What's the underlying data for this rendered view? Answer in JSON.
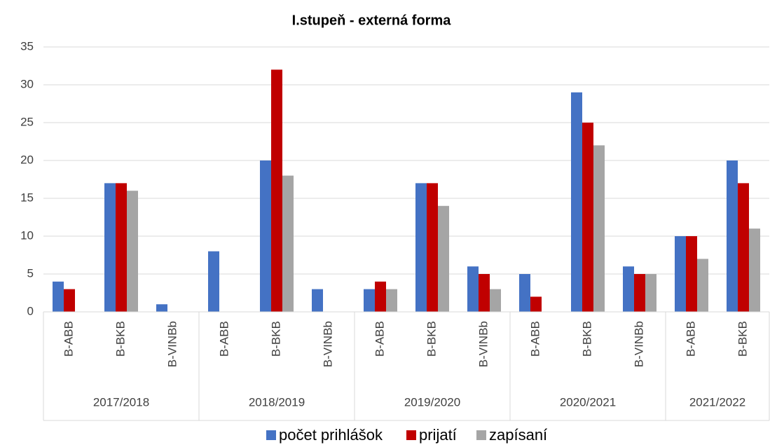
{
  "chart_data": {
    "type": "bar",
    "title": "I.stupeň - externá forma",
    "category_groups": [
      {
        "name": "2017/2018",
        "categories": [
          "B-ABB",
          "B-BKB",
          "B-VINBb"
        ]
      },
      {
        "name": "2018/2019",
        "categories": [
          "B-ABB",
          "B-BKB",
          "B-VINBb"
        ]
      },
      {
        "name": "2019/2020",
        "categories": [
          "B-ABB",
          "B-BKB",
          "B-VINBb"
        ]
      },
      {
        "name": "2020/2021",
        "categories": [
          "B-ABB",
          "B-BKB",
          "B-VINBb"
        ]
      },
      {
        "name": "2021/2022",
        "categories": [
          "B-ABB",
          "B-BKB"
        ]
      }
    ],
    "series": [
      {
        "name": "počet prihlášok",
        "color": "#4472c4",
        "values": [
          4,
          17,
          1,
          8,
          20,
          3,
          3,
          17,
          6,
          5,
          29,
          6,
          10,
          20
        ]
      },
      {
        "name": "prijatí",
        "color": "#c00000",
        "values": [
          3,
          17,
          0,
          0,
          32,
          0,
          4,
          17,
          5,
          2,
          25,
          5,
          10,
          17
        ]
      },
      {
        "name": "zapísaní",
        "color": "#a5a5a5",
        "values": [
          0,
          16,
          0,
          0,
          18,
          0,
          3,
          14,
          3,
          0,
          22,
          5,
          7,
          11
        ]
      }
    ],
    "ylim": [
      0,
      35
    ],
    "yticks": [
      0,
      5,
      10,
      15,
      20,
      25,
      30,
      35
    ],
    "grid": true,
    "legend": "bottom"
  }
}
